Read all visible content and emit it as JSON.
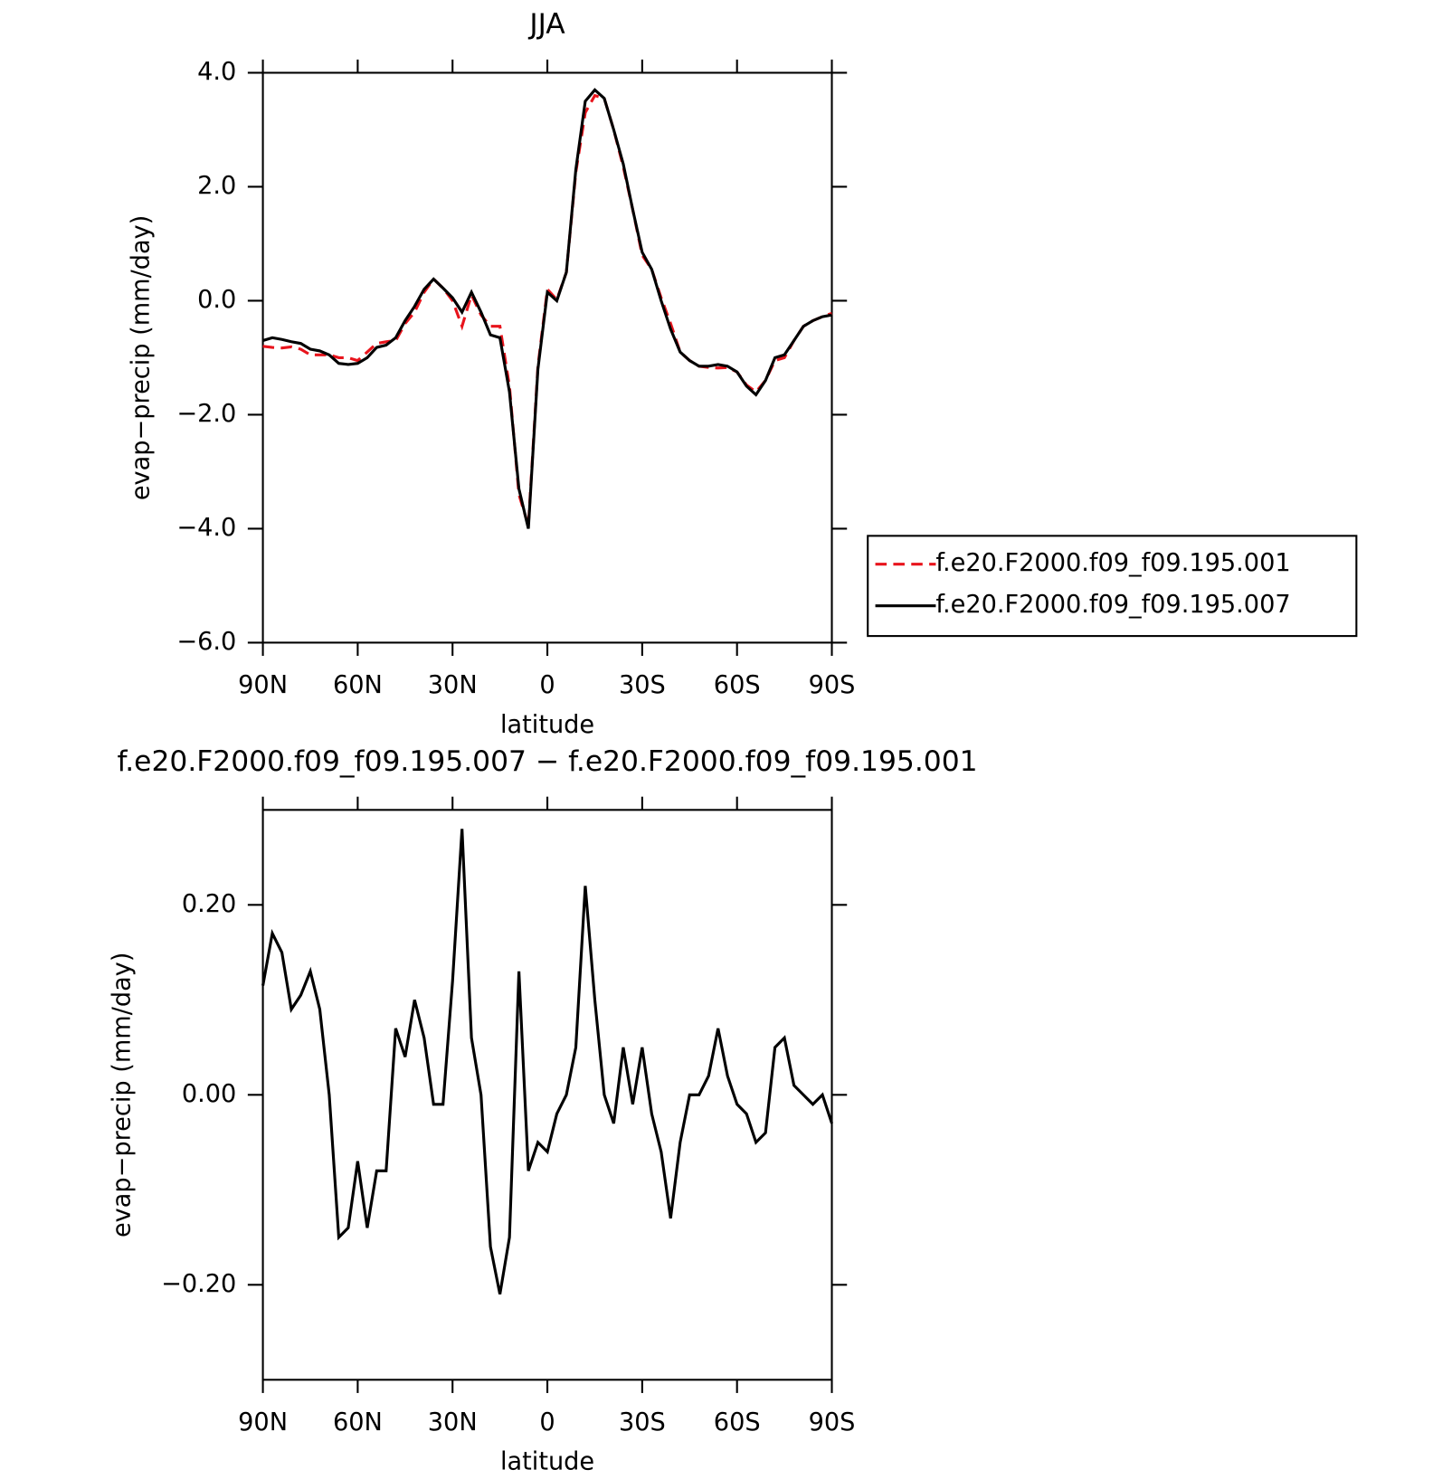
{
  "chart_data": [
    {
      "type": "line",
      "title": "JJA",
      "xlabel": "latitude",
      "ylabel": "evap−precip (mm/day)",
      "x": [
        90,
        87,
        84,
        81,
        78,
        75,
        72,
        69,
        66,
        63,
        60,
        57,
        54,
        51,
        48,
        45,
        42,
        39,
        36,
        33,
        30,
        27,
        24,
        21,
        18,
        15,
        12,
        9,
        6,
        3,
        0,
        -3,
        -6,
        -9,
        -12,
        -15,
        -18,
        -21,
        -24,
        -27,
        -30,
        -33,
        -36,
        -39,
        -42,
        -45,
        -48,
        -51,
        -54,
        -57,
        -60,
        -63,
        -66,
        -69,
        -72,
        -75,
        -78,
        -81,
        -84,
        -87,
        -90
      ],
      "series": [
        {
          "name": "f.e20.F2000.f09_f09.195.001",
          "color": "#e8141c",
          "linestyle": "dashed",
          "values": [
            -0.8,
            -0.82,
            -0.83,
            -0.81,
            -0.85,
            -0.95,
            -0.95,
            -0.95,
            -1.0,
            -1.0,
            -1.05,
            -0.9,
            -0.75,
            -0.72,
            -0.7,
            -0.4,
            -0.2,
            0.15,
            0.38,
            0.22,
            0.0,
            -0.45,
            0.1,
            -0.25,
            -0.45,
            -0.45,
            -1.5,
            -3.4,
            -3.95,
            -1.15,
            0.2,
            0.02,
            0.5,
            2.25,
            3.3,
            3.6,
            3.55,
            3.0,
            2.35,
            1.6,
            0.8,
            0.55,
            0.05,
            -0.4,
            -0.9,
            -1.05,
            -1.15,
            -1.17,
            -1.18,
            -1.17,
            -1.25,
            -1.48,
            -1.6,
            -1.4,
            -1.05,
            -1.0,
            -0.7,
            -0.45,
            -0.35,
            -0.28,
            -0.22
          ]
        },
        {
          "name": "f.e20.F2000.f09_f09.195.007",
          "color": "#000000",
          "linestyle": "solid",
          "values": [
            -0.7,
            -0.65,
            -0.68,
            -0.72,
            -0.75,
            -0.85,
            -0.88,
            -0.95,
            -1.1,
            -1.12,
            -1.1,
            -1.0,
            -0.82,
            -0.78,
            -0.65,
            -0.35,
            -0.1,
            0.2,
            0.38,
            0.22,
            0.05,
            -0.2,
            0.15,
            -0.2,
            -0.6,
            -0.65,
            -1.6,
            -3.3,
            -4.0,
            -1.2,
            0.15,
            0.0,
            0.5,
            2.3,
            3.5,
            3.7,
            3.55,
            3.0,
            2.4,
            1.6,
            0.85,
            0.55,
            0.0,
            -0.5,
            -0.9,
            -1.05,
            -1.15,
            -1.15,
            -1.12,
            -1.15,
            -1.25,
            -1.5,
            -1.65,
            -1.4,
            -1.0,
            -0.95,
            -0.7,
            -0.45,
            -0.35,
            -0.28,
            -0.25
          ]
        }
      ],
      "xlim": [
        90,
        -90
      ],
      "xticks": [
        {
          "value": 90,
          "label": "90N"
        },
        {
          "value": 60,
          "label": "60N"
        },
        {
          "value": 30,
          "label": "30N"
        },
        0,
        {
          "value": -30,
          "label": "30S"
        },
        {
          "value": -60,
          "label": "60S"
        },
        {
          "value": -90,
          "label": "90S"
        }
      ],
      "ylim": [
        -6,
        4
      ],
      "yticks": [
        {
          "value": -6,
          "label": "−6.0"
        },
        {
          "value": -4,
          "label": "−4.0"
        },
        {
          "value": -2,
          "label": "−2.0"
        },
        {
          "value": 0,
          "label": "0.0"
        },
        {
          "value": 2,
          "label": "2.0"
        },
        {
          "value": 4,
          "label": "4.0"
        }
      ],
      "legend": "right"
    },
    {
      "type": "line",
      "title": "f.e20.F2000.f09_f09.195.007 − f.e20.F2000.f09_f09.195.001",
      "xlabel": "latitude",
      "ylabel": "evap−precip (mm/day)",
      "x": [
        90,
        87,
        84,
        81,
        78,
        75,
        72,
        69,
        66,
        63,
        60,
        57,
        54,
        51,
        48,
        45,
        42,
        39,
        36,
        33,
        30,
        27,
        24,
        21,
        18,
        15,
        12,
        9,
        6,
        3,
        0,
        -3,
        -6,
        -9,
        -12,
        -15,
        -18,
        -21,
        -24,
        -27,
        -30,
        -33,
        -36,
        -39,
        -42,
        -45,
        -48,
        -51,
        -54,
        -57,
        -60,
        -63,
        -66,
        -69,
        -72,
        -75,
        -78,
        -81,
        -84,
        -87,
        -90
      ],
      "color": "#000000",
      "values": [
        0.115,
        0.17,
        0.15,
        0.09,
        0.105,
        0.13,
        0.09,
        0.0,
        -0.15,
        -0.14,
        -0.07,
        -0.14,
        -0.08,
        -0.08,
        0.07,
        0.04,
        0.1,
        0.06,
        -0.01,
        -0.01,
        0.12,
        0.28,
        0.06,
        0.0,
        -0.16,
        -0.21,
        -0.15,
        0.13,
        -0.08,
        -0.05,
        -0.06,
        -0.02,
        0.0,
        0.05,
        0.22,
        0.1,
        0.0,
        -0.03,
        0.05,
        -0.01,
        0.05,
        -0.02,
        -0.06,
        -0.13,
        -0.05,
        0.0,
        0.0,
        0.02,
        0.07,
        0.02,
        -0.01,
        -0.02,
        -0.05,
        -0.04,
        0.05,
        0.06,
        0.01,
        0.0,
        -0.01,
        0.0,
        -0.03
      ],
      "xlim": [
        90,
        -90
      ],
      "xticks": [
        {
          "value": 90,
          "label": "90N"
        },
        {
          "value": 60,
          "label": "60N"
        },
        {
          "value": 30,
          "label": "30N"
        },
        0,
        {
          "value": -30,
          "label": "30S"
        },
        {
          "value": -60,
          "label": "60S"
        },
        {
          "value": -90,
          "label": "90S"
        }
      ],
      "ylim": [
        -0.3,
        0.3
      ],
      "yticks": [
        {
          "value": -0.2,
          "label": "−0.20"
        },
        {
          "value": 0,
          "label": "0.00"
        },
        {
          "value": 0.2,
          "label": "0.20"
        }
      ]
    }
  ]
}
